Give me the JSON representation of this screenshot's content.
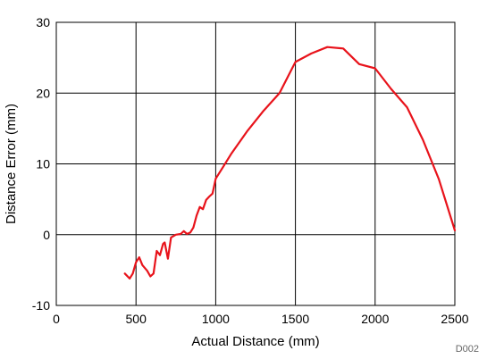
{
  "chart_data": {
    "type": "line",
    "title": "",
    "xlabel": "Actual Distance (mm)",
    "ylabel": "Distance Error (mm)",
    "xlim": [
      0,
      2500
    ],
    "ylim": [
      -10,
      30
    ],
    "xticks": [
      0,
      500,
      1000,
      1500,
      2000,
      2500
    ],
    "yticks": [
      -10,
      0,
      10,
      20,
      30
    ],
    "grid": true,
    "legend": "none",
    "figure_code": "D002",
    "series": [
      {
        "color": "#e8131b",
        "x": [
          430,
          460,
          480,
          500,
          520,
          540,
          570,
          590,
          610,
          630,
          650,
          670,
          680,
          700,
          720,
          750,
          780,
          800,
          820,
          840,
          860,
          880,
          900,
          920,
          940,
          960,
          980,
          1000,
          1050,
          1100,
          1200,
          1300,
          1400,
          1500,
          1600,
          1700,
          1800,
          1900,
          2000,
          2100,
          2200,
          2300,
          2400,
          2500
        ],
        "y": [
          -5.5,
          -6.2,
          -5.5,
          -3.9,
          -3.2,
          -4.3,
          -5.1,
          -5.9,
          -5.5,
          -2.3,
          -2.9,
          -1.3,
          -1.1,
          -3.4,
          -0.4,
          0.0,
          0.1,
          0.5,
          0.1,
          0.3,
          1.0,
          2.7,
          3.9,
          3.6,
          4.9,
          5.4,
          5.8,
          7.9,
          9.7,
          11.5,
          14.7,
          17.5,
          20.0,
          24.4,
          25.6,
          26.5,
          26.3,
          24.1,
          23.5,
          20.6,
          18.0,
          13.4,
          7.8,
          0.6
        ]
      }
    ]
  }
}
